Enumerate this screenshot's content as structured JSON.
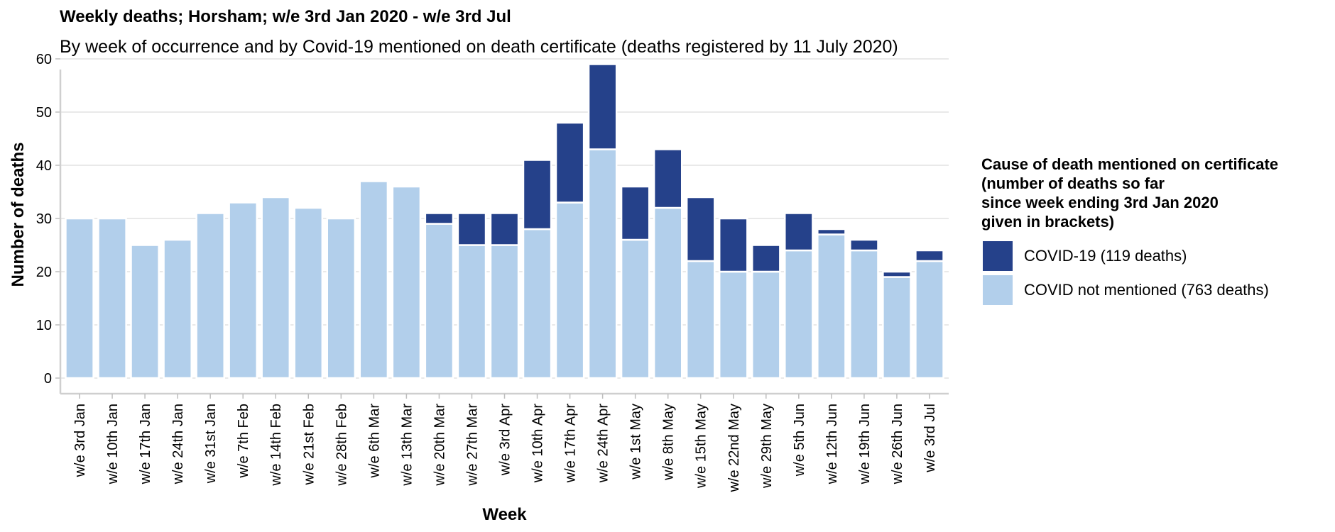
{
  "chart_data": {
    "type": "bar",
    "stacked": true,
    "title": "Weekly deaths; Horsham; w/e 3rd Jan 2020 - w/e 3rd Jul",
    "subtitle": "By week of occurrence and by Covid-19 mentioned on death certificate (deaths registered by 11 July 2020)",
    "xlabel": "Week",
    "ylabel": "Number of deaths",
    "ylim": [
      0,
      62
    ],
    "yticks": [
      0,
      10,
      20,
      30,
      40,
      50,
      60
    ],
    "grid": true,
    "legend_position": "right",
    "legend_title_lines": [
      "Cause of death mentioned on certificate",
      "(number of deaths so far",
      "since week ending 3rd Jan 2020",
      "given in brackets)"
    ],
    "categories": [
      "w/e 3rd Jan",
      "w/e 10th Jan",
      "w/e 17th Jan",
      "w/e 24th Jan",
      "w/e 31st Jan",
      "w/e 7th Feb",
      "w/e 14th Feb",
      "w/e 21st Feb",
      "w/e 28th Feb",
      "w/e 6th Mar",
      "w/e 13th Mar",
      "w/e 20th Mar",
      "w/e 27th Mar",
      "w/e 3rd Apr",
      "w/e 10th Apr",
      "w/e 17th Apr",
      "w/e 24th Apr",
      "w/e 1st May",
      "w/e 8th May",
      "w/e 15th May",
      "w/e 22nd May",
      "w/e 29th May",
      "w/e 5th Jun",
      "w/e 12th Jun",
      "w/e 19th Jun",
      "w/e 26th Jun",
      "w/e 3rd Jul"
    ],
    "series": [
      {
        "name": "COVID not mentioned (763 deaths)",
        "color": "#b2cfeb",
        "values": [
          30,
          30,
          25,
          26,
          31,
          33,
          34,
          32,
          30,
          37,
          36,
          29,
          25,
          25,
          28,
          33,
          43,
          26,
          32,
          22,
          20,
          20,
          24,
          27,
          24,
          19,
          22
        ]
      },
      {
        "name": "COVID-19 (119 deaths)",
        "color": "#25418a",
        "values": [
          0,
          0,
          0,
          0,
          0,
          0,
          0,
          0,
          0,
          0,
          0,
          2,
          6,
          6,
          13,
          15,
          16,
          10,
          11,
          12,
          10,
          5,
          7,
          1,
          2,
          1,
          2
        ]
      }
    ]
  }
}
